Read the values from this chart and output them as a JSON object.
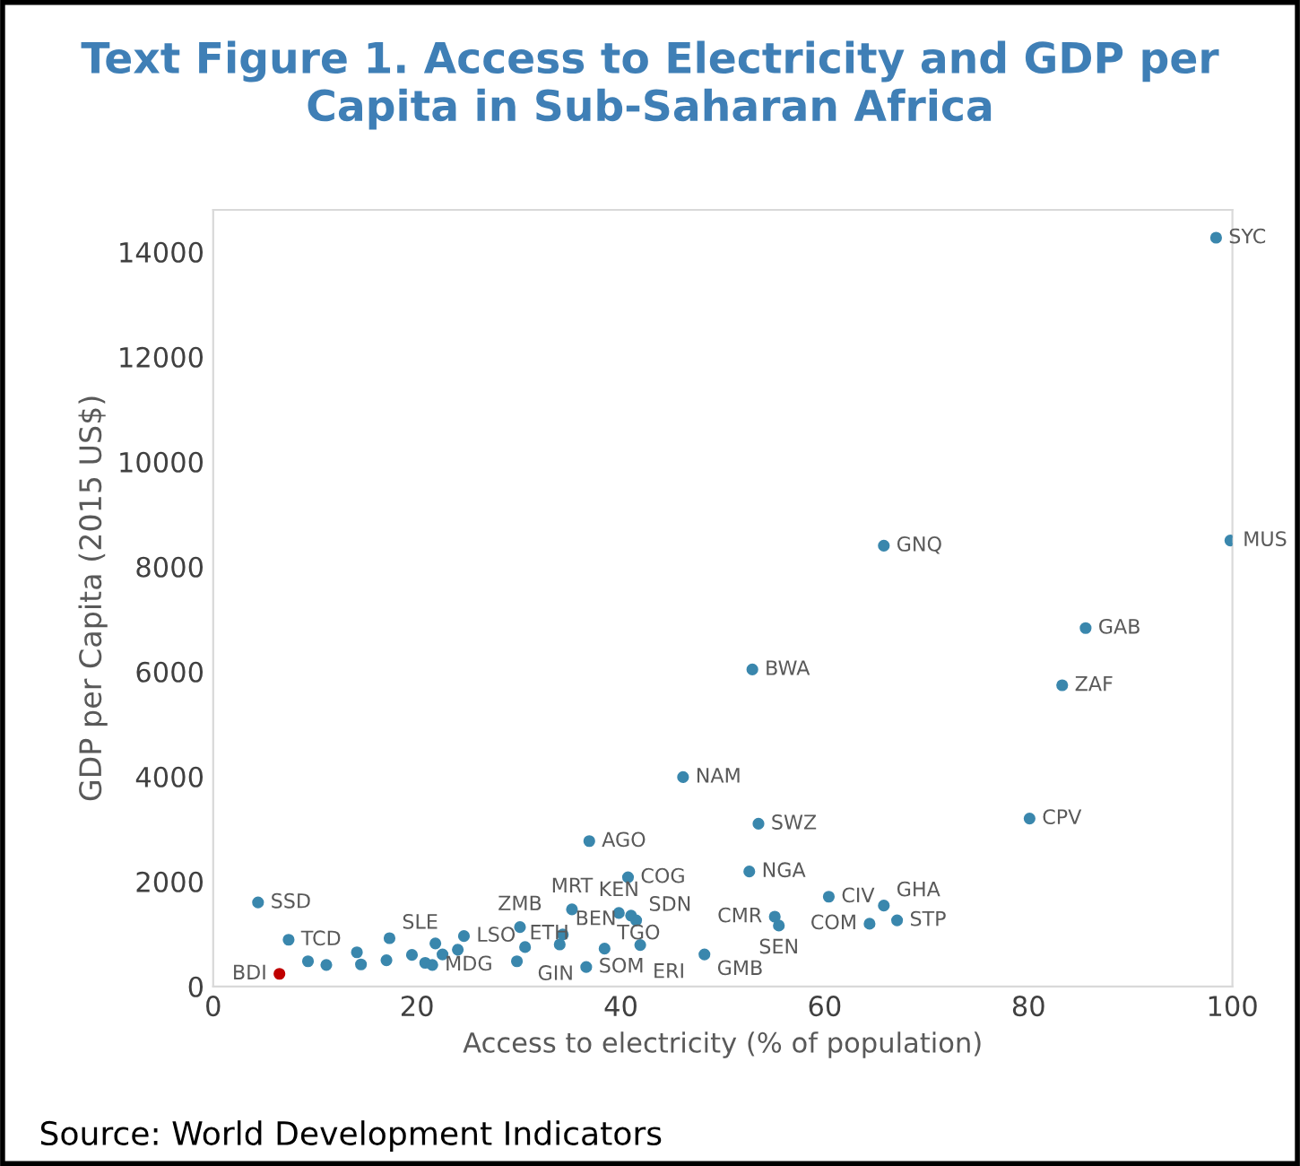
{
  "chart_data": {
    "type": "scatter",
    "title": "Text Figure 1. Access to Electricity and GDP per Capita in Sub-Saharan Africa",
    "xlabel": "Access to electricity (% of population)",
    "ylabel": "GDP per Capita (2015 US$)",
    "xlim": [
      0,
      100
    ],
    "ylim": [
      0,
      14800
    ],
    "xticks": [
      0,
      20,
      40,
      60,
      80,
      100
    ],
    "yticks": [
      0,
      2000,
      4000,
      6000,
      8000,
      10000,
      12000,
      14000
    ],
    "grid": false,
    "legend": false,
    "marker": "circle",
    "series": [
      {
        "color": "#3a87ad",
        "x": [
          98.4,
          99.8,
          65.8,
          85.6,
          83.3,
          52.9,
          46.1,
          80.1,
          53.5,
          36.9,
          40.7,
          52.6,
          60.4,
          65.8,
          64.4,
          67.1,
          55.1,
          55.5,
          4.4,
          7.4,
          9.3,
          11.1,
          14.1,
          14.5,
          17.0,
          17.3,
          19.5,
          20.8,
          21.5,
          21.8,
          22.5,
          24.0,
          24.6,
          30.1,
          30.6,
          29.8,
          34.3,
          35.2,
          34.0,
          36.6,
          38.4,
          39.8,
          41.5,
          41.0,
          41.9,
          48.2
        ],
        "values": [
          14270,
          8500,
          8400,
          6830,
          5740,
          6040,
          3990,
          3200,
          3100,
          2770,
          2080,
          2190,
          1710,
          1540,
          1195,
          1260,
          1330,
          1160,
          1600,
          890,
          480,
          410,
          650,
          420,
          500,
          920,
          600,
          450,
          410,
          820,
          610,
          700,
          960,
          1130,
          750,
          480,
          990,
          1470,
          800,
          370,
          720,
          1400,
          1260,
          1350,
          790,
          610
        ]
      },
      {
        "color": "#c00000",
        "x": [
          6.5
        ],
        "values": [
          240
        ]
      }
    ],
    "annotations": [
      {
        "text": "SYC",
        "x": 98.4,
        "y": 14270
      },
      {
        "text": "MUS",
        "x": 99.8,
        "y": 8500
      },
      {
        "text": "GNQ",
        "x": 65.8,
        "y": 8400
      },
      {
        "text": "GAB",
        "x": 85.6,
        "y": 6830
      },
      {
        "text": "ZAF",
        "x": 83.3,
        "y": 5740
      },
      {
        "text": "BWA",
        "x": 52.9,
        "y": 6040
      },
      {
        "text": "NAM",
        "x": 46.1,
        "y": 3990
      },
      {
        "text": "CPV",
        "x": 80.1,
        "y": 3200
      },
      {
        "text": "SWZ",
        "x": 53.5,
        "y": 3100
      },
      {
        "text": "AGO",
        "x": 36.9,
        "y": 2770
      },
      {
        "text": "COG",
        "x": 40.7,
        "y": 2080
      },
      {
        "text": "NGA",
        "x": 52.6,
        "y": 2190
      },
      {
        "text": "CIV",
        "x": 60.4,
        "y": 1710
      },
      {
        "text": "GHA",
        "x": 65.8,
        "y": 1540
      },
      {
        "text": "COM",
        "x": 64.4,
        "y": 1195
      },
      {
        "text": "STP",
        "x": 67.1,
        "y": 1260
      },
      {
        "text": "CMR",
        "x": 55.1,
        "y": 1330
      },
      {
        "text": "SEN",
        "x": 55.5,
        "y": 1160
      },
      {
        "text": "SSD",
        "x": 4.4,
        "y": 1600
      },
      {
        "text": "TCD",
        "x": 7.4,
        "y": 890
      },
      {
        "text": "SLE",
        "x": 17.3,
        "y": 920
      },
      {
        "text": "MDG",
        "x": 21.5,
        "y": 410
      },
      {
        "text": "LSO",
        "x": 24.6,
        "y": 960
      },
      {
        "text": "ZMB",
        "x": 30.1,
        "y": 1130
      },
      {
        "text": "GIN",
        "x": 30.6,
        "y": 750
      },
      {
        "text": "ETH",
        "x": 29.8,
        "y": 480
      },
      {
        "text": "BEN",
        "x": 34.3,
        "y": 990
      },
      {
        "text": "MRT",
        "x": 35.2,
        "y": 1470
      },
      {
        "text": "SOM",
        "x": 36.6,
        "y": 370
      },
      {
        "text": "TGO",
        "x": 38.4,
        "y": 720
      },
      {
        "text": "KEN",
        "x": 39.8,
        "y": 1400
      },
      {
        "text": "SDN",
        "x": 41.5,
        "y": 1260
      },
      {
        "text": "ERI",
        "x": 41.9,
        "y": 790
      },
      {
        "text": "GMB",
        "x": 48.2,
        "y": 610
      },
      {
        "text": "BDI",
        "x": 6.5,
        "y": 240
      },
      "Source: World Development Indicators"
    ]
  }
}
